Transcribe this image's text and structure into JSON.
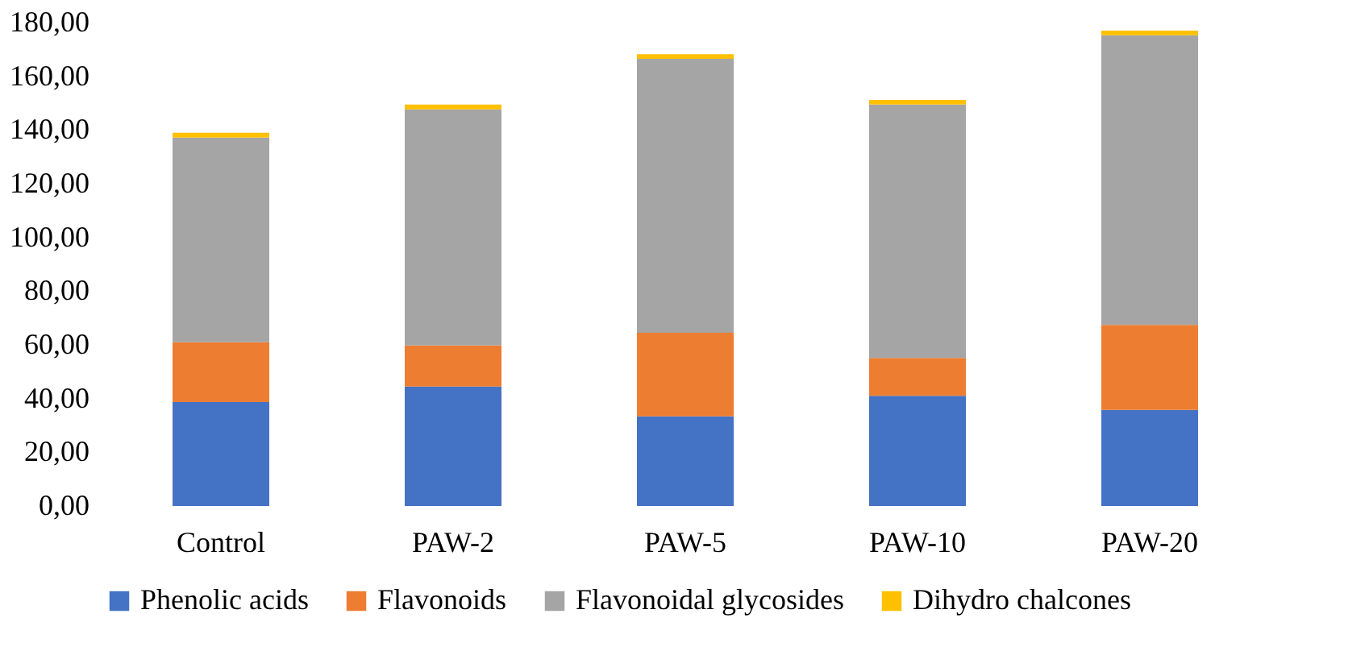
{
  "chart_data": {
    "type": "bar",
    "stacked": true,
    "categories": [
      "Control",
      "PAW-2",
      "PAW-5",
      "PAW-10",
      "PAW-20"
    ],
    "series": [
      {
        "name": "Phenolic acids",
        "color": "#4472c4",
        "values": [
          38.7,
          44.5,
          33.4,
          41.0,
          35.8
        ]
      },
      {
        "name": "Flavonoids",
        "color": "#ed7d31",
        "values": [
          22.3,
          15.3,
          31.1,
          14.1,
          31.6
        ]
      },
      {
        "name": "Flavonoidal glycosides",
        "color": "#a5a5a5",
        "values": [
          76.2,
          87.9,
          102.0,
          94.4,
          107.9
        ]
      },
      {
        "name": "Dihydro chalcones",
        "color": "#ffc000",
        "values": [
          1.8,
          1.8,
          1.7,
          1.7,
          1.7
        ]
      }
    ],
    "ylim": [
      0,
      180
    ],
    "yticks": [
      {
        "value": 0,
        "label": "0,00"
      },
      {
        "value": 20,
        "label": "20,00"
      },
      {
        "value": 40,
        "label": "40,00"
      },
      {
        "value": 60,
        "label": "60,00"
      },
      {
        "value": 80,
        "label": "80,00"
      },
      {
        "value": 100,
        "label": "100,00"
      },
      {
        "value": 120,
        "label": "120,00"
      },
      {
        "value": 140,
        "label": "140,00"
      },
      {
        "value": 160,
        "label": "160,00"
      },
      {
        "value": 180,
        "label": "180,00"
      }
    ],
    "grid": false,
    "legend": "bottom"
  }
}
